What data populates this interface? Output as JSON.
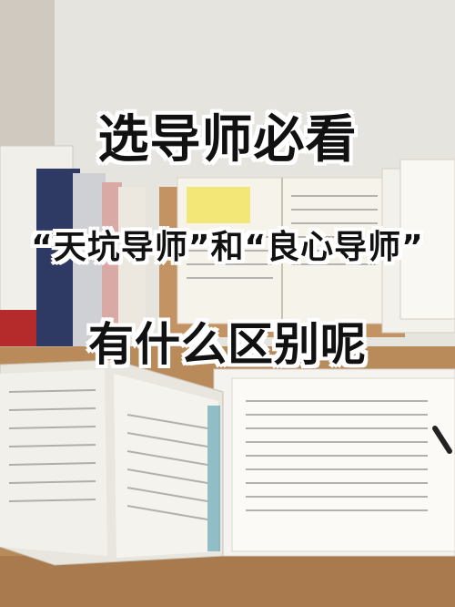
{
  "overlay": {
    "headline": "选导师必看",
    "subline": "“天坑导师”和“良心导师”",
    "question": "有什么区别呢"
  },
  "colors": {
    "wall": "#e4e2dc",
    "desk": "#b98a5a",
    "paper": "#f4f2ee",
    "text": "#111111",
    "outline": "#ffffff"
  }
}
